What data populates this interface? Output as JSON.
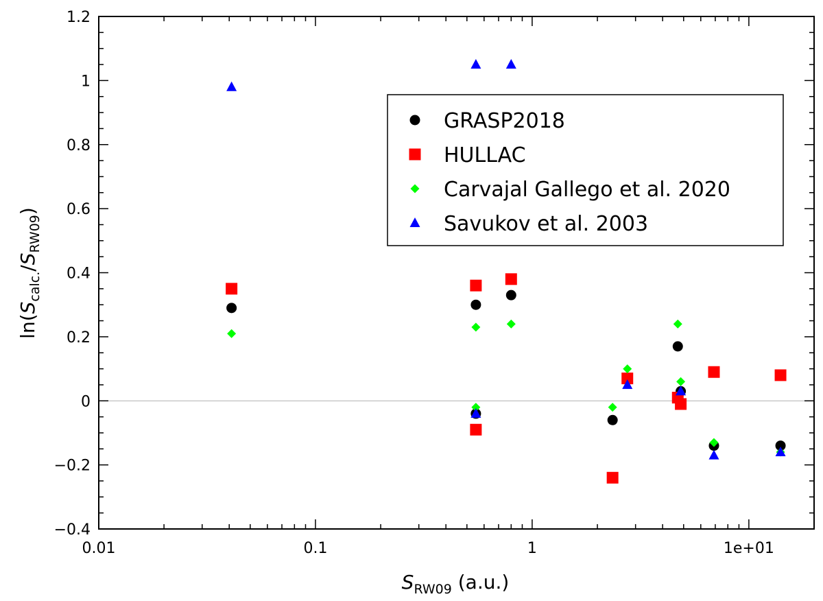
{
  "chart_data": {
    "type": "scatter",
    "title": "",
    "xlabel": {
      "var": "S",
      "sub": "RW09",
      "unit": " (a.u.)"
    },
    "ylabel": {
      "prefix": "ln(",
      "var1": "S",
      "sub1": "calc.",
      "sep": "/",
      "var2": "S",
      "sub2": "RW09",
      "suffix": ")"
    },
    "x_scale": "log",
    "xlim": [
      0.01,
      20
    ],
    "ylim": [
      -0.4,
      1.2
    ],
    "x_ticks": [
      {
        "value": 0.01,
        "label": "0.01"
      },
      {
        "value": 0.1,
        "label": "0.1"
      },
      {
        "value": 1,
        "label": "1"
      },
      {
        "value": 10,
        "label": "1e+01"
      }
    ],
    "y_ticks": [
      {
        "value": -0.4,
        "label": "−0.4"
      },
      {
        "value": -0.2,
        "label": "−0.2"
      },
      {
        "value": 0,
        "label": "0"
      },
      {
        "value": 0.2,
        "label": "0.2"
      },
      {
        "value": 0.4,
        "label": "0.4"
      },
      {
        "value": 0.6,
        "label": "0.6"
      },
      {
        "value": 0.8,
        "label": "0.8"
      },
      {
        "value": 1.0,
        "label": "1"
      },
      {
        "value": 1.2,
        "label": "1.2"
      }
    ],
    "reference_line_y": 0,
    "legend_position": "upper-right",
    "series": [
      {
        "name": "GRASP2018",
        "marker": "circle",
        "color": "#000000",
        "points": [
          [
            0.041,
            0.29
          ],
          [
            0.55,
            -0.04
          ],
          [
            0.55,
            0.3
          ],
          [
            0.8,
            0.33
          ],
          [
            2.35,
            -0.06
          ],
          [
            4.7,
            0.17
          ],
          [
            4.85,
            0.03
          ],
          [
            6.9,
            -0.14
          ],
          [
            14.0,
            -0.14
          ]
        ]
      },
      {
        "name": "HULLAC",
        "marker": "square",
        "color": "#ff0000",
        "points": [
          [
            0.041,
            0.35
          ],
          [
            0.55,
            -0.09
          ],
          [
            0.55,
            0.36
          ],
          [
            0.8,
            0.38
          ],
          [
            2.35,
            -0.24
          ],
          [
            2.75,
            0.07
          ],
          [
            4.7,
            0.01
          ],
          [
            4.85,
            -0.01
          ],
          [
            6.9,
            0.09
          ],
          [
            14.0,
            0.08
          ]
        ]
      },
      {
        "name": "Carvajal Gallego et al. 2020",
        "marker": "diamond",
        "color": "#00ff00",
        "points": [
          [
            0.041,
            0.21
          ],
          [
            0.55,
            -0.02
          ],
          [
            0.55,
            0.23
          ],
          [
            0.8,
            0.24
          ],
          [
            2.35,
            -0.02
          ],
          [
            2.75,
            0.1
          ],
          [
            4.7,
            0.24
          ],
          [
            4.85,
            0.06
          ],
          [
            6.9,
            -0.13
          ],
          [
            14.0,
            -0.16
          ]
        ]
      },
      {
        "name": "Savukov et al. 2003",
        "marker": "triangle",
        "color": "#0000ff",
        "points": [
          [
            0.041,
            0.98
          ],
          [
            0.55,
            1.05
          ],
          [
            0.8,
            1.05
          ],
          [
            0.55,
            -0.04
          ],
          [
            2.75,
            0.05
          ],
          [
            4.85,
            0.03
          ],
          [
            6.9,
            -0.17
          ],
          [
            14.0,
            -0.16
          ]
        ]
      }
    ]
  }
}
